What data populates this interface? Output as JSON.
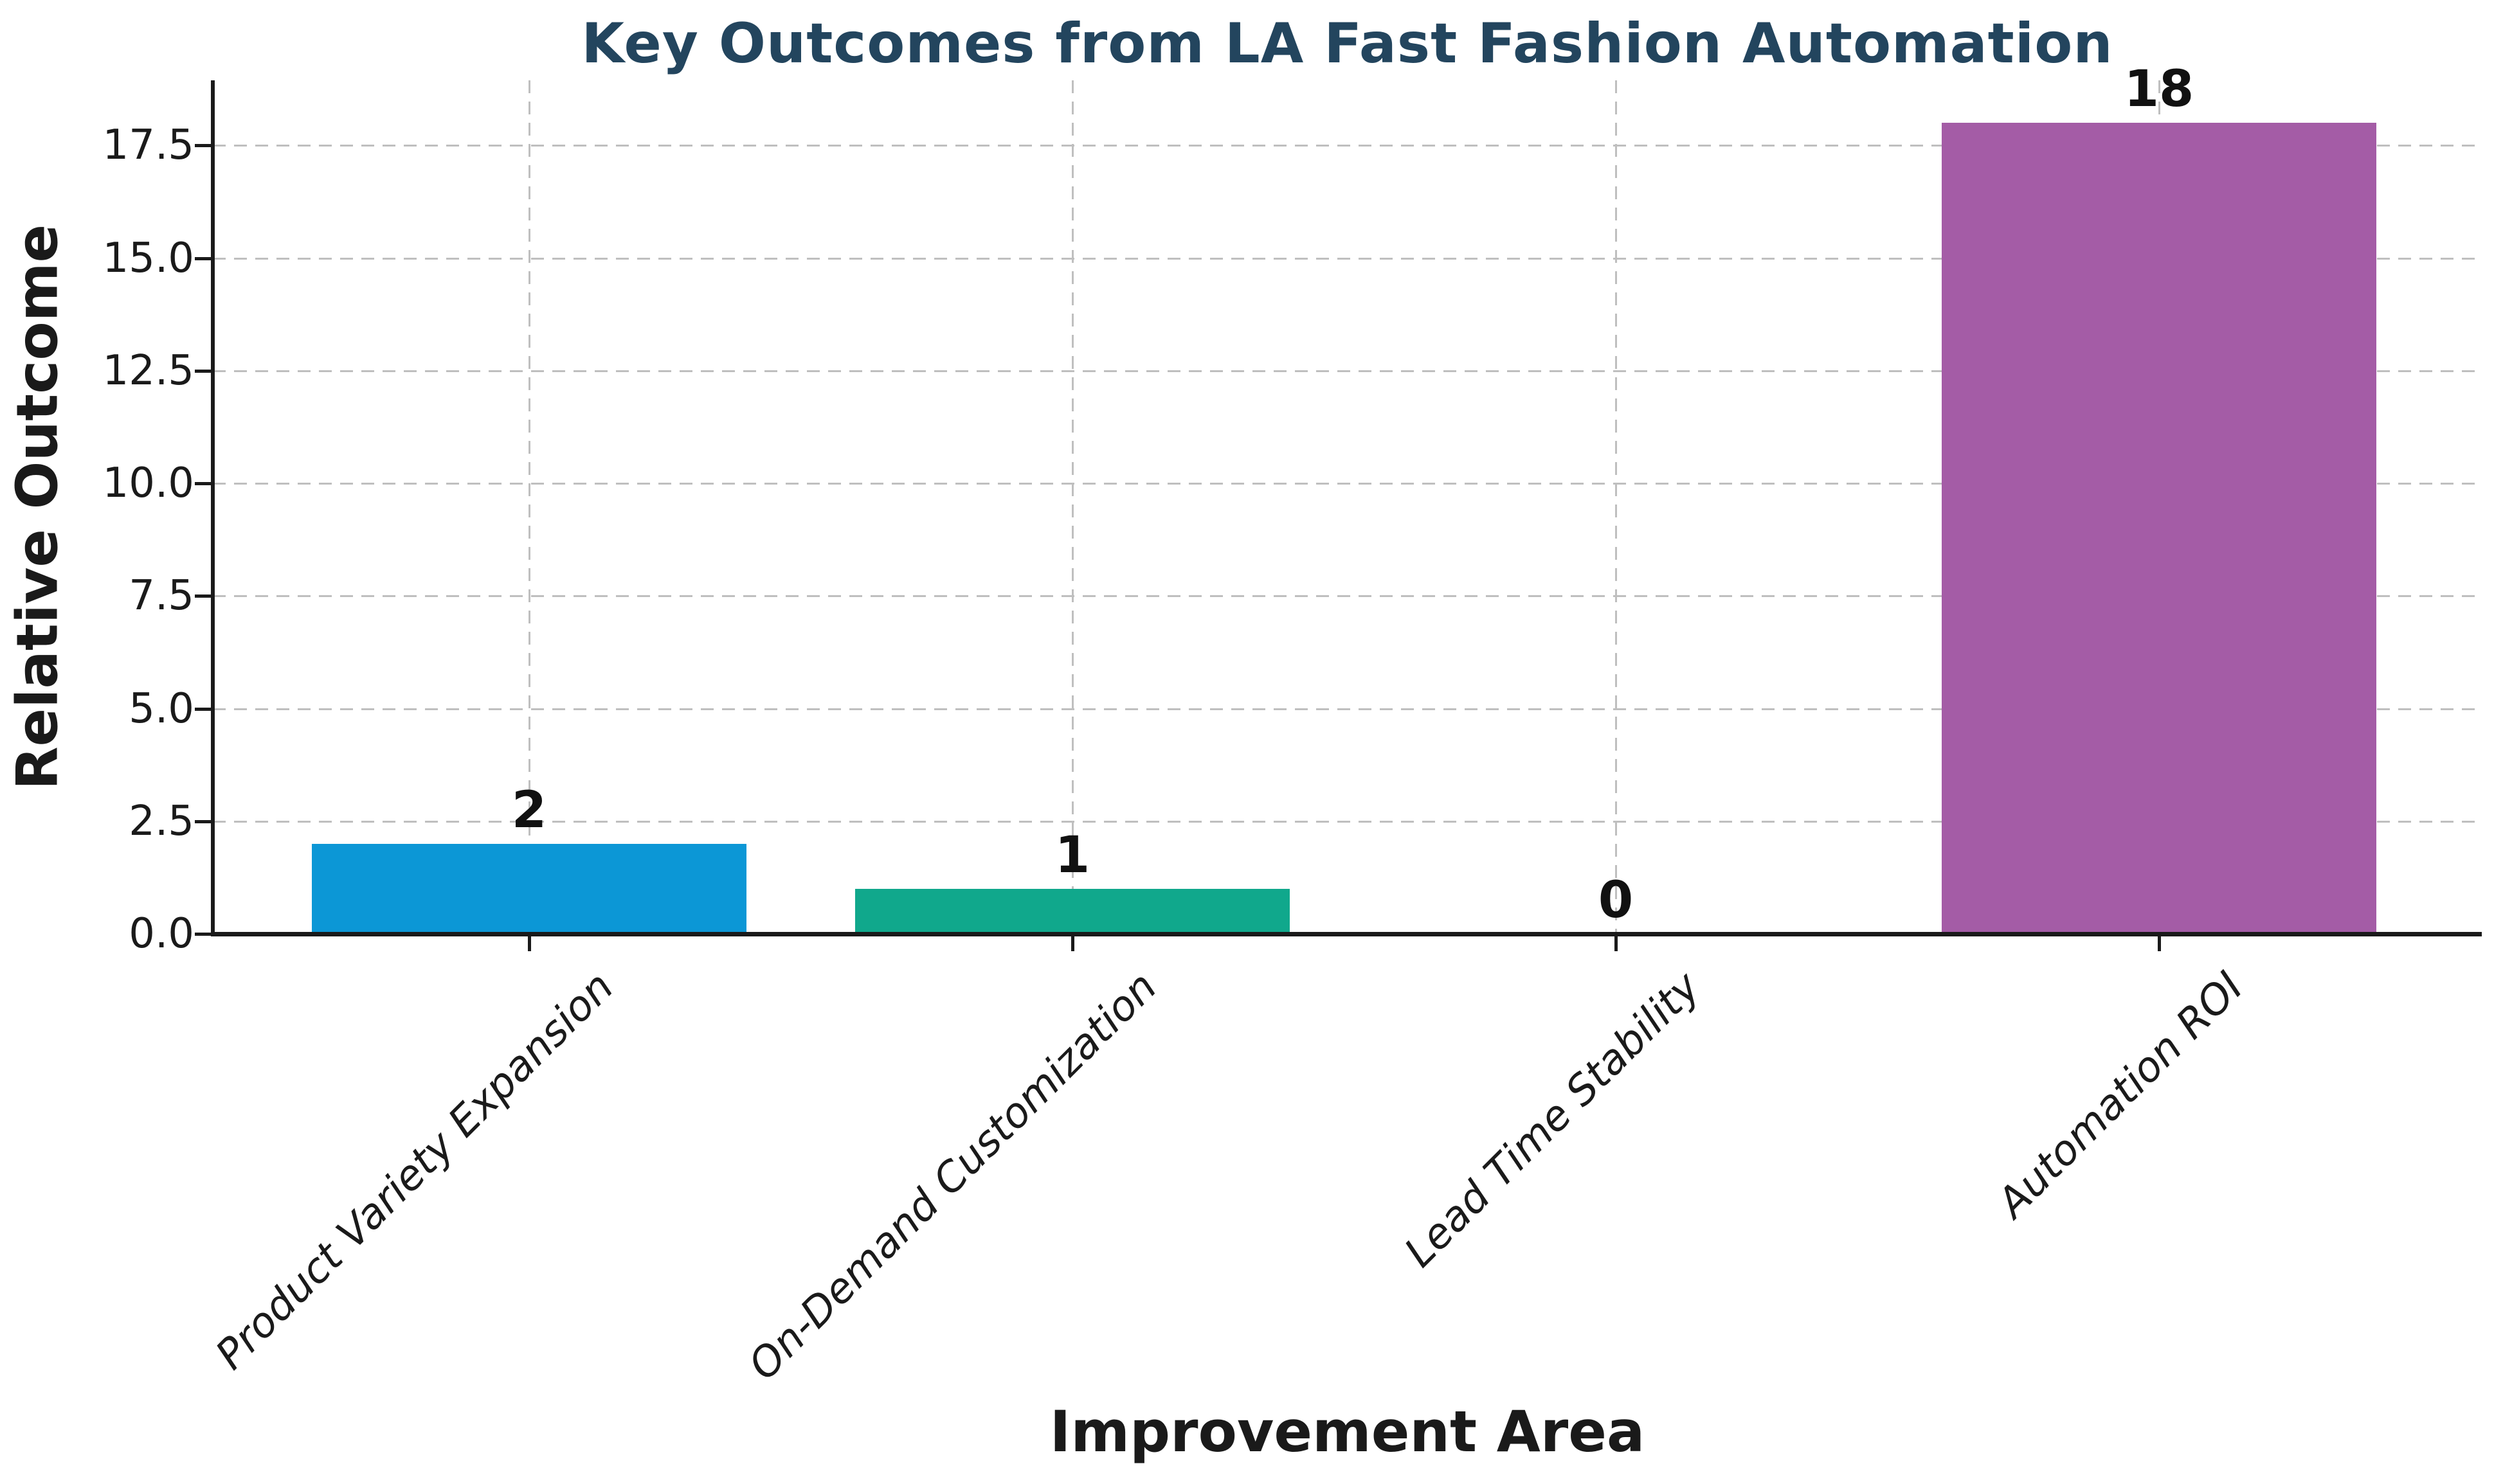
{
  "chart_data": {
    "type": "bar",
    "title": "Key Outcomes from LA Fast Fashion Automation",
    "xlabel": "Improvement Area",
    "ylabel": "Relative Outcome",
    "categories": [
      "Product Variety Expansion",
      "On-Demand Customization",
      "Lead Time Stability",
      "Automation ROI"
    ],
    "values": [
      2,
      1,
      0,
      18
    ],
    "bar_value_labels": [
      "2",
      "1",
      "0",
      "18"
    ],
    "bar_colors": [
      "#0c97d6",
      "#10a88c",
      "transparent",
      "#a45ca6"
    ],
    "ytick_values": [
      0,
      2.5,
      5,
      7.5,
      10,
      12.5,
      15,
      17.5
    ],
    "ytick_labels": [
      "0.0",
      "2.5",
      "5.0",
      "7.5",
      "10.0",
      "12.5",
      "15.0",
      "17.5"
    ],
    "ylim": [
      0,
      18.9
    ],
    "grid": true,
    "gridline_style": "dashed",
    "xtick_rotation_deg": 45,
    "legend": "none",
    "colors": {
      "title": "#23455e",
      "axis": "#1a1a1a",
      "text": "#1a1a1a",
      "grid": "#bfbfbf"
    }
  }
}
